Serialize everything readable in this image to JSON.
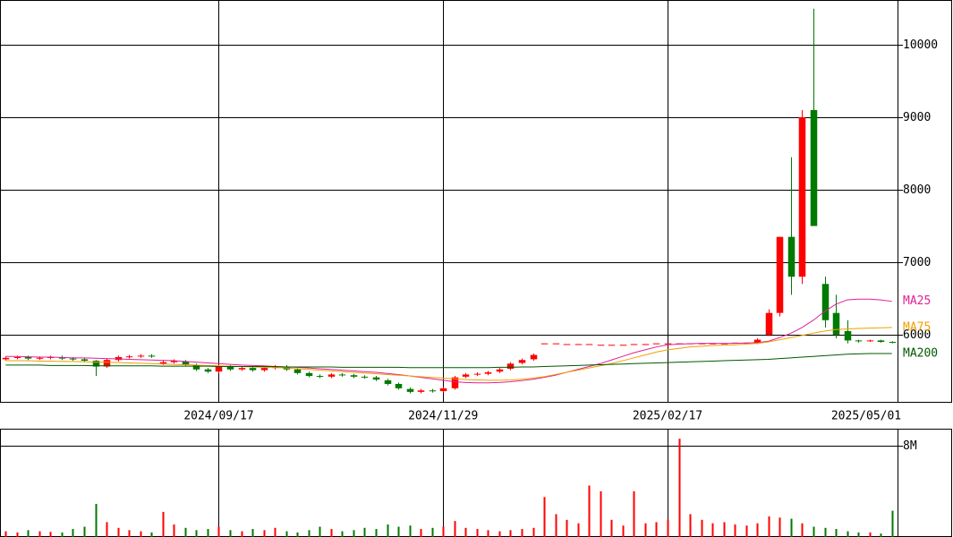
{
  "chart_data": {
    "type": "candlestick",
    "categories": [
      null,
      null,
      null,
      null,
      null,
      null,
      null,
      null,
      null,
      null,
      null,
      null,
      null,
      null,
      null,
      null,
      null,
      null,
      null,
      "2024/09/17",
      null,
      null,
      null,
      null,
      null,
      null,
      null,
      null,
      null,
      null,
      null,
      null,
      null,
      null,
      null,
      null,
      null,
      null,
      null,
      "2024/11/29",
      null,
      null,
      null,
      null,
      null,
      null,
      null,
      null,
      null,
      null,
      null,
      null,
      null,
      null,
      null,
      null,
      null,
      null,
      null,
      "2025/02/17",
      null,
      null,
      null,
      null,
      null,
      null,
      null,
      null,
      null,
      null,
      null,
      null,
      null,
      null,
      null,
      null,
      null,
      null,
      null,
      "2025/05/01"
    ],
    "open": [
      5660,
      5680,
      5690,
      5670,
      5680,
      5690,
      5670,
      5660,
      5640,
      5560,
      5650,
      5690,
      5700,
      5710,
      5600,
      5620,
      5630,
      5580,
      5520,
      5490,
      5560,
      5520,
      5540,
      5510,
      5540,
      5560,
      5520,
      5470,
      5430,
      5420,
      5450,
      5440,
      5420,
      5410,
      5370,
      5320,
      5250,
      5210,
      5230,
      5220,
      5260,
      5420,
      5450,
      5460,
      5490,
      5530,
      5610,
      5660,
      5880,
      5880,
      5870,
      5870,
      5870,
      5860,
      5860,
      5860,
      5870,
      5870,
      5880,
      5880,
      5880,
      5880,
      5880,
      5880,
      5880,
      5890,
      5890,
      5880,
      6000,
      6300,
      7350,
      6800,
      9100,
      6700,
      6300,
      6050,
      5920,
      5910,
      5920,
      5900
    ],
    "high": [
      5700,
      5710,
      5710,
      5700,
      5710,
      5710,
      5690,
      5680,
      5650,
      5670,
      5710,
      5720,
      5730,
      5730,
      5640,
      5660,
      5650,
      5600,
      5540,
      5580,
      5580,
      5560,
      5560,
      5560,
      5580,
      5580,
      5540,
      5490,
      5450,
      5470,
      5470,
      5460,
      5440,
      5430,
      5390,
      5340,
      5270,
      5250,
      5250,
      5280,
      5430,
      5470,
      5480,
      5500,
      5540,
      5620,
      5670,
      5740,
      5880,
      5880,
      5870,
      5870,
      5870,
      5860,
      5860,
      5860,
      5870,
      5870,
      5880,
      5880,
      5880,
      5880,
      5880,
      5880,
      5880,
      5890,
      5890,
      5950,
      6350,
      7350,
      8450,
      9100,
      10500,
      6800,
      6550,
      6200,
      5930,
      5930,
      5930,
      5910
    ],
    "low": [
      5640,
      5660,
      5650,
      5650,
      5660,
      5650,
      5640,
      5620,
      5430,
      5540,
      5630,
      5670,
      5680,
      5680,
      5580,
      5600,
      5560,
      5500,
      5470,
      5470,
      5500,
      5500,
      5490,
      5490,
      5520,
      5500,
      5450,
      5410,
      5400,
      5400,
      5420,
      5400,
      5390,
      5360,
      5300,
      5240,
      5190,
      5190,
      5200,
      5200,
      5240,
      5400,
      5430,
      5440,
      5470,
      5510,
      5590,
      5640,
      5880,
      5880,
      5870,
      5870,
      5870,
      5860,
      5860,
      5860,
      5870,
      5870,
      5880,
      5880,
      5880,
      5880,
      5880,
      5880,
      5880,
      5890,
      5890,
      5870,
      5980,
      6250,
      6550,
      6700,
      7500,
      6100,
      5950,
      5880,
      5890,
      5900,
      5890,
      5880
    ],
    "close": [
      5680,
      5690,
      5670,
      5680,
      5690,
      5670,
      5660,
      5640,
      5560,
      5650,
      5690,
      5700,
      5710,
      5700,
      5620,
      5640,
      5580,
      5520,
      5490,
      5560,
      5520,
      5540,
      5510,
      5540,
      5560,
      5520,
      5470,
      5430,
      5420,
      5450,
      5440,
      5420,
      5410,
      5380,
      5320,
      5260,
      5210,
      5230,
      5220,
      5260,
      5410,
      5450,
      5460,
      5480,
      5520,
      5600,
      5650,
      5720,
      5880,
      5880,
      5870,
      5870,
      5870,
      5860,
      5860,
      5860,
      5870,
      5870,
      5880,
      5880,
      5880,
      5880,
      5880,
      5880,
      5880,
      5890,
      5890,
      5930,
      6300,
      7350,
      6800,
      9000,
      7500,
      6200,
      6000,
      5920,
      5910,
      5920,
      5900,
      5890
    ],
    "up_color": "#ff0000",
    "down_color": "#007a00",
    "ylim": [
      5060,
      10620
    ],
    "yticks": [
      6000,
      7000,
      8000,
      9000,
      10000
    ],
    "grid": true,
    "series": [
      {
        "name": "MA25",
        "color": "#e0209a",
        "values": [
          5700,
          5700,
          5695,
          5690,
          5690,
          5685,
          5680,
          5680,
          5675,
          5670,
          5665,
          5660,
          5655,
          5650,
          5645,
          5640,
          5630,
          5620,
          5610,
          5600,
          5590,
          5580,
          5575,
          5570,
          5560,
          5555,
          5550,
          5540,
          5530,
          5520,
          5510,
          5500,
          5490,
          5480,
          5465,
          5450,
          5430,
          5410,
          5390,
          5370,
          5350,
          5340,
          5335,
          5335,
          5340,
          5350,
          5365,
          5385,
          5410,
          5440,
          5480,
          5520,
          5560,
          5600,
          5650,
          5700,
          5750,
          5790,
          5830,
          5860,
          5870,
          5875,
          5880,
          5880,
          5880,
          5880,
          5885,
          5890,
          5910,
          5960,
          6020,
          6100,
          6200,
          6320,
          6420,
          6480,
          6490,
          6490,
          6480,
          6460
        ]
      },
      {
        "name": "MA75",
        "color": "#f0a000",
        "values": [
          5640,
          5640,
          5640,
          5635,
          5635,
          5630,
          5630,
          5625,
          5620,
          5620,
          5615,
          5610,
          5605,
          5600,
          5595,
          5590,
          5585,
          5580,
          5575,
          5570,
          5565,
          5560,
          5555,
          5550,
          5545,
          5540,
          5530,
          5520,
          5510,
          5500,
          5490,
          5480,
          5470,
          5460,
          5450,
          5440,
          5430,
          5420,
          5410,
          5400,
          5390,
          5380,
          5375,
          5370,
          5370,
          5375,
          5385,
          5400,
          5420,
          5450,
          5480,
          5510,
          5540,
          5570,
          5600,
          5640,
          5680,
          5720,
          5760,
          5790,
          5810,
          5830,
          5840,
          5850,
          5855,
          5860,
          5870,
          5880,
          5900,
          5930,
          5960,
          5990,
          6020,
          6050,
          6070,
          6080,
          6085,
          6090,
          6095,
          6100
        ]
      },
      {
        "name": "MA200",
        "color": "#005a00",
        "values": [
          5580,
          5580,
          5580,
          5580,
          5575,
          5575,
          5575,
          5575,
          5570,
          5570,
          5570,
          5570,
          5570,
          5570,
          5565,
          5565,
          5565,
          5565,
          5565,
          5560,
          5560,
          5560,
          5560,
          5560,
          5560,
          5555,
          5555,
          5555,
          5555,
          5555,
          5550,
          5550,
          5550,
          5550,
          5550,
          5550,
          5545,
          5545,
          5545,
          5545,
          5545,
          5545,
          5545,
          5545,
          5550,
          5550,
          5555,
          5555,
          5560,
          5565,
          5570,
          5575,
          5580,
          5585,
          5590,
          5595,
          5600,
          5605,
          5610,
          5615,
          5620,
          5625,
          5630,
          5635,
          5640,
          5645,
          5650,
          5655,
          5660,
          5670,
          5680,
          5690,
          5700,
          5710,
          5720,
          5730,
          5735,
          5740,
          5740,
          5740
        ]
      }
    ],
    "volume": [
      500000,
      400000,
      600000,
      500000,
      450000,
      400000,
      700000,
      900000,
      2900000,
      1300000,
      800000,
      600000,
      500000,
      400000,
      2200000,
      1100000,
      800000,
      600000,
      700000,
      900000,
      600000,
      500000,
      700000,
      600000,
      800000,
      500000,
      400000,
      600000,
      900000,
      700000,
      500000,
      600000,
      800000,
      700000,
      1100000,
      900000,
      1000000,
      700000,
      800000,
      900000,
      1400000,
      800000,
      700000,
      600000,
      500000,
      600000,
      700000,
      800000,
      3500000,
      2000000,
      1500000,
      1200000,
      4500000,
      4000000,
      1500000,
      1000000,
      4000000,
      1200000,
      1300000,
      1500000,
      8600000,
      2000000,
      1500000,
      1200000,
      1300000,
      1100000,
      1000000,
      1200000,
      1800000,
      1700000,
      1600000,
      1200000,
      900000,
      800000,
      700000,
      500000,
      400000,
      400000,
      300000,
      2300000
    ],
    "volume_ylim": [
      0,
      9400000
    ],
    "volume_yticks": [
      {
        "value": 8000000,
        "label": "8M"
      }
    ]
  }
}
